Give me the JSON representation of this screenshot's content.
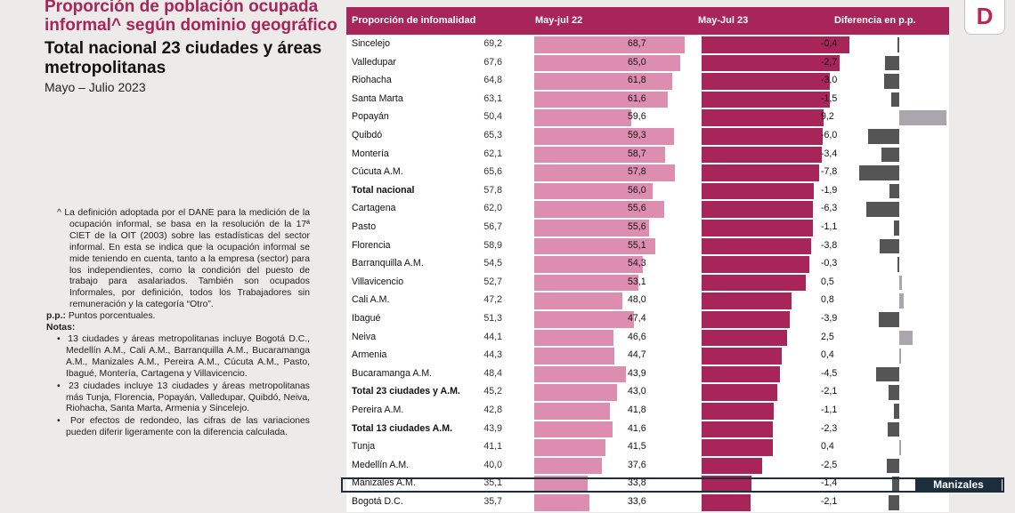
{
  "title": "Proporción de población ocupada informal^ según dominio geográfico",
  "subtitle": "Total nacional 23 ciudades y áreas metropolitanas",
  "period": "Mayo – Julio 2023",
  "notes": {
    "definition": "^ La definición adoptada por el DANE para la medición de la ocupación informal, se basa en la resolución de la 17ª CIET de la OIT (2003) sobre las estadísticas del sector informal. En esta se indica que la ocupación informal se mide teniendo en cuenta, tanto a la empresa (sector) para los independientes, como la condición del puesto de trabajo para asalariados. También son ocupados Informales, por definición, todos los Trabajadores sin remuneración y la categoría “Otro”.",
    "pp_label": "p.p.:",
    "pp_text": " Puntos porcentuales.",
    "notas_label": "Notas:",
    "items": [
      "13 ciudades y áreas metropolitanas incluye Bogotá D.C., Medellín A.M., Cali A.M., Barranquilla A.M., Bucaramanga A.M., Manizales A.M., Pereira A.M., Cúcuta A.M., Pasto, Ibagué, Montería, Cartagena y Villavicencio.",
      "23 ciudades incluye 13 ciudades y áreas metropolitanas más Tunja, Florencia, Popayán, Valledupar, Quibdó, Neiva, Riohacha, Santa Marta, Armenia y Sincelejo.",
      "Por efectos de redondeo, las cifras de las variaciones pueden diferir ligeramente con la diferencia calculada."
    ]
  },
  "logo_letter": "D",
  "highlight_label": "Manizales",
  "colors": {
    "accent": "#a8255a",
    "bar_2022": "#dd8db0",
    "bar_2023": "#a8255a",
    "diff_negative": "#555555",
    "diff_positive": "#a9a7ad",
    "highlight": "#1c2e3e"
  },
  "chart_data": {
    "type": "table",
    "headers": [
      "Proporción de infomalidad",
      "May-jul 22",
      "May-Jul 23",
      "Diferencia en p.p."
    ],
    "rows": [
      {
        "name": "Sincelejo",
        "v22": "69,2",
        "v23": "68,7",
        "diff": "-0,4"
      },
      {
        "name": "Valledupar",
        "v22": "67,6",
        "v23": "65,0",
        "diff": "-2,7"
      },
      {
        "name": "Riohacha",
        "v22": "64,8",
        "v23": "61,8",
        "diff": "-3,0"
      },
      {
        "name": "Santa Marta",
        "v22": "63,1",
        "v23": "61,6",
        "diff": "-1,5"
      },
      {
        "name": "Popayán",
        "v22": "50,4",
        "v23": "59,6",
        "diff": "9,2"
      },
      {
        "name": "Quibdó",
        "v22": "65,3",
        "v23": "59,3",
        "diff": "-6,0"
      },
      {
        "name": "Montería",
        "v22": "62,1",
        "v23": "58,7",
        "diff": "-3,4"
      },
      {
        "name": "Cúcuta A.M.",
        "v22": "65,6",
        "v23": "57,8",
        "diff": "-7,8"
      },
      {
        "name": "Total nacional",
        "v22": "57,8",
        "v23": "56,0",
        "diff": "-1,9",
        "bold": true
      },
      {
        "name": "Cartagena",
        "v22": "62,0",
        "v23": "55,6",
        "diff": "-6,3"
      },
      {
        "name": "Pasto",
        "v22": "56,7",
        "v23": "55,6",
        "diff": "-1,1"
      },
      {
        "name": "Florencia",
        "v22": "58,9",
        "v23": "55,1",
        "diff": "-3,8"
      },
      {
        "name": "Barranquilla A.M.",
        "v22": "54,5",
        "v23": "54,3",
        "diff": "-0,3"
      },
      {
        "name": "Villavicencio",
        "v22": "52,7",
        "v23": "53,1",
        "diff": "0,5"
      },
      {
        "name": "Cali A.M.",
        "v22": "47,2",
        "v23": "48,0",
        "diff": "0,8"
      },
      {
        "name": "Ibagué",
        "v22": "51,3",
        "v23": "47,4",
        "diff": "-3,9"
      },
      {
        "name": "Neiva",
        "v22": "44,1",
        "v23": "46,6",
        "diff": "2,5"
      },
      {
        "name": "Armenia",
        "v22": "44,3",
        "v23": "44,7",
        "diff": "0,4"
      },
      {
        "name": "Bucaramanga A.M.",
        "v22": "48,4",
        "v23": "43,9",
        "diff": "-4,5"
      },
      {
        "name": "Total 23 ciudades y A.M.",
        "v22": "45,2",
        "v23": "43,0",
        "diff": "-2,1",
        "bold": true
      },
      {
        "name": "Pereira A.M.",
        "v22": "42,8",
        "v23": "41,8",
        "diff": "-1,1"
      },
      {
        "name": "Total 13 ciudades A.M.",
        "v22": "43,9",
        "v23": "41,6",
        "diff": "-2,3",
        "bold": true
      },
      {
        "name": "Tunja",
        "v22": "41,1",
        "v23": "41,5",
        "diff": "0,4"
      },
      {
        "name": "Medellín A.M.",
        "v22": "40,0",
        "v23": "37,6",
        "diff": "-2,5"
      },
      {
        "name": "Manizales A.M.",
        "v22": "35,1",
        "v23": "33,8",
        "diff": "-1,4"
      },
      {
        "name": "Bogotá D.C.",
        "v22": "35,7",
        "v23": "33,6",
        "diff": "-2,1"
      }
    ]
  }
}
